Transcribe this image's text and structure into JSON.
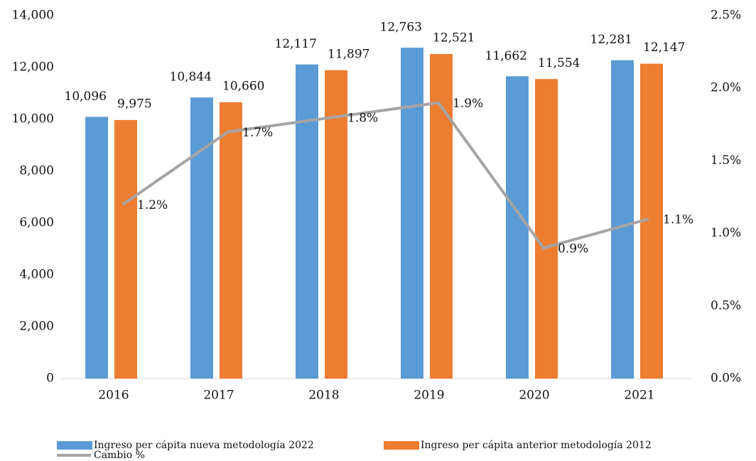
{
  "chart_data": {
    "type": "bar-line",
    "categories": [
      "2016",
      "2017",
      "2018",
      "2019",
      "2020",
      "2021"
    ],
    "series": [
      {
        "name": "Ingreso per cápita nueva metodología 2022",
        "color": "#5b9bd5",
        "type": "bar",
        "values": [
          10096,
          10844,
          12117,
          12763,
          11662,
          12281
        ],
        "value_labels": [
          "10,096",
          "10,844",
          "12,117",
          "12,763",
          "11,662",
          "12,281"
        ]
      },
      {
        "name": "Ingreso per cápita anterior metodología 2012",
        "color": "#ed7d31",
        "type": "bar",
        "values": [
          9975,
          10660,
          11897,
          12521,
          11554,
          12147
        ],
        "value_labels": [
          "9,975",
          "10,660",
          "11,897",
          "12,521",
          "11,554",
          "12,147"
        ]
      },
      {
        "name": "Cambio %",
        "color": "#a5a5a5",
        "type": "line",
        "axis": "y2",
        "values": [
          1.2,
          1.7,
          1.8,
          1.9,
          0.9,
          1.1
        ],
        "value_labels": [
          "1.2%",
          "1.7%",
          "1.8%",
          "1.9%",
          "0.9%",
          "1.1%"
        ]
      }
    ],
    "ylim": [
      0,
      14000
    ],
    "yticks": [
      0,
      {
        "value": 2000,
        "label": "2,000"
      },
      {
        "value": 4000,
        "label": "4,000"
      },
      {
        "value": 6000,
        "label": "6,000"
      },
      {
        "value": 8000,
        "label": "8,000"
      },
      {
        "value": 10000,
        "label": "10,000"
      },
      {
        "value": 12000,
        "label": "12,000"
      },
      {
        "value": 14000,
        "label": "14,000"
      }
    ],
    "y2lim": [
      0,
      2.5
    ],
    "y2ticks": [
      {
        "value": 0,
        "label": "0.0%"
      },
      {
        "value": 0.5,
        "label": "0.5%"
      },
      {
        "value": 1.0,
        "label": "1.0%"
      },
      {
        "value": 1.5,
        "label": "1.5%"
      },
      {
        "value": 2.0,
        "label": "2.0%"
      },
      {
        "value": 2.5,
        "label": "2.5%"
      }
    ],
    "grid": false,
    "legend": "bottom"
  }
}
